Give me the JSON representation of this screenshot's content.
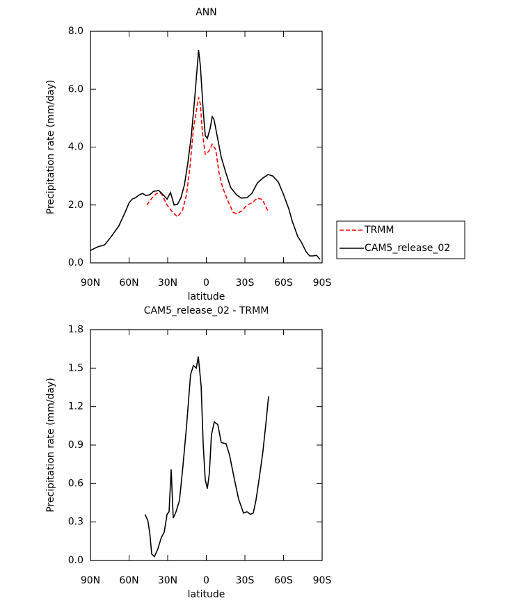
{
  "chart_data": [
    {
      "type": "line",
      "title": "ANN",
      "xlabel": "latitude",
      "ylabel": "Precipitation rate (mm/day)",
      "xlim": [
        90,
        -90
      ],
      "xticks": [
        {
          "value": 90,
          "label": "90N"
        },
        {
          "value": 60,
          "label": "60N"
        },
        {
          "value": 30,
          "label": "30N"
        },
        0,
        {
          "value": -30,
          "label": "30S"
        },
        {
          "value": -60,
          "label": "60S"
        },
        {
          "value": -90,
          "label": "90S"
        }
      ],
      "ylim": [
        0,
        8
      ],
      "yticks": [
        {
          "value": 0,
          "label": "0.0"
        },
        {
          "value": 2,
          "label": "2.0"
        },
        {
          "value": 4,
          "label": "4.0"
        },
        {
          "value": 6,
          "label": "6.0"
        },
        {
          "value": 8,
          "label": "8.0"
        }
      ],
      "legend": "right",
      "series": [
        {
          "name": "TRMM",
          "color": "#ff0000",
          "dashed": true,
          "x": [
            46.2,
            42.4,
            38.6,
            34.9,
            30.5,
            26.2,
            22.4,
            18.6,
            15.4,
            12.7,
            10,
            6,
            4.6,
            3,
            0.8,
            -1.9,
            -4.6,
            -7.3,
            -10,
            -12.7,
            -17,
            -20.8,
            -23.5,
            -27.8,
            -31.6,
            -35.4,
            -39.7,
            -43.5,
            -47.8
          ],
          "values": [
            2.0,
            2.23,
            2.4,
            2.4,
            2.0,
            1.75,
            1.59,
            1.8,
            2.35,
            3.3,
            4.63,
            5.72,
            5.48,
            4.52,
            3.75,
            3.85,
            4.1,
            3.92,
            3.08,
            2.6,
            2.12,
            1.75,
            1.7,
            1.8,
            2.0,
            2.07,
            2.24,
            2.19,
            1.8
          ]
        },
        {
          "name": "CAM5_release_02",
          "color": "#000000",
          "dashed": false,
          "x": [
            90,
            84.6,
            79,
            74,
            68,
            63,
            60,
            57.6,
            55,
            52,
            49.5,
            47,
            44,
            41,
            37,
            33,
            30.5,
            27.8,
            25,
            22.4,
            19.7,
            17,
            14.3,
            11.6,
            9,
            6,
            4.6,
            2.4,
            0.8,
            -0.8,
            -3,
            -4.6,
            -6,
            -8.4,
            -11.6,
            -15.4,
            -19,
            -23.5,
            -27,
            -31.6,
            -35.4,
            -39.7,
            -44,
            -48,
            -51.6,
            -56,
            -60,
            -64,
            -66.8,
            -71,
            -73.8,
            -77.6,
            -80.3,
            -83,
            -85.7,
            -88.4
          ],
          "values": [
            0.43,
            0.55,
            0.62,
            0.9,
            1.27,
            1.75,
            2.07,
            2.2,
            2.25,
            2.35,
            2.4,
            2.33,
            2.35,
            2.47,
            2.5,
            2.33,
            2.2,
            2.43,
            2.0,
            2.02,
            2.25,
            2.7,
            3.45,
            4.4,
            5.7,
            7.35,
            6.8,
            5.25,
            4.4,
            4.3,
            4.65,
            5.05,
            4.95,
            4.4,
            3.65,
            3.08,
            2.6,
            2.35,
            2.24,
            2.25,
            2.4,
            2.76,
            2.93,
            3.05,
            3.0,
            2.79,
            2.36,
            1.88,
            1.44,
            0.91,
            0.72,
            0.38,
            0.24,
            0.24,
            0.26,
            0.12
          ]
        }
      ]
    },
    {
      "type": "line",
      "title": "CAM5_release_02 - TRMM",
      "xlabel": "latitude",
      "ylabel": "Precipitation rate (mm/day)",
      "xlim": [
        90,
        -90
      ],
      "xticks": [
        {
          "value": 90,
          "label": "90N"
        },
        {
          "value": 60,
          "label": "60N"
        },
        {
          "value": 30,
          "label": "30N"
        },
        0,
        {
          "value": -30,
          "label": "30S"
        },
        {
          "value": -60,
          "label": "60S"
        },
        {
          "value": -90,
          "label": "90S"
        }
      ],
      "ylim": [
        0,
        1.8
      ],
      "yticks": [
        {
          "value": 0,
          "label": "0.0"
        },
        {
          "value": 0.3,
          "label": "0.3"
        },
        {
          "value": 0.6,
          "label": "0.6"
        },
        {
          "value": 0.9,
          "label": "0.9"
        },
        {
          "value": 1.2,
          "label": "1.2"
        },
        {
          "value": 1.5,
          "label": "1.5"
        },
        {
          "value": 1.8,
          "label": "1.8"
        }
      ],
      "series": [
        {
          "color": "#000000",
          "dashed": false,
          "x": [
            47.6,
            45.4,
            44,
            42.4,
            40.3,
            37.6,
            34.9,
            32.7,
            30.5,
            28.9,
            27.3,
            25.7,
            23.5,
            20.8,
            18.1,
            15.4,
            12.2,
            10,
            7.8,
            6.2,
            4,
            2.4,
            0.8,
            -0.8,
            -2.4,
            -4,
            -6.2,
            -8.9,
            -11.6,
            -15.4,
            -18.1,
            -21.9,
            -25.1,
            -28.9,
            -31.6,
            -34.3,
            -36.5,
            -38.6,
            -41.4,
            -44,
            -46.2,
            -48.4
          ],
          "values": [
            0.36,
            0.31,
            0.22,
            0.05,
            0.03,
            0.09,
            0.18,
            0.22,
            0.36,
            0.38,
            0.71,
            0.33,
            0.38,
            0.47,
            0.74,
            1.04,
            1.45,
            1.52,
            1.5,
            1.59,
            1.36,
            0.9,
            0.63,
            0.56,
            0.68,
            0.98,
            1.08,
            1.06,
            0.92,
            0.91,
            0.82,
            0.63,
            0.48,
            0.37,
            0.38,
            0.36,
            0.37,
            0.47,
            0.66,
            0.85,
            1.06,
            1.28
          ]
        }
      ]
    }
  ]
}
